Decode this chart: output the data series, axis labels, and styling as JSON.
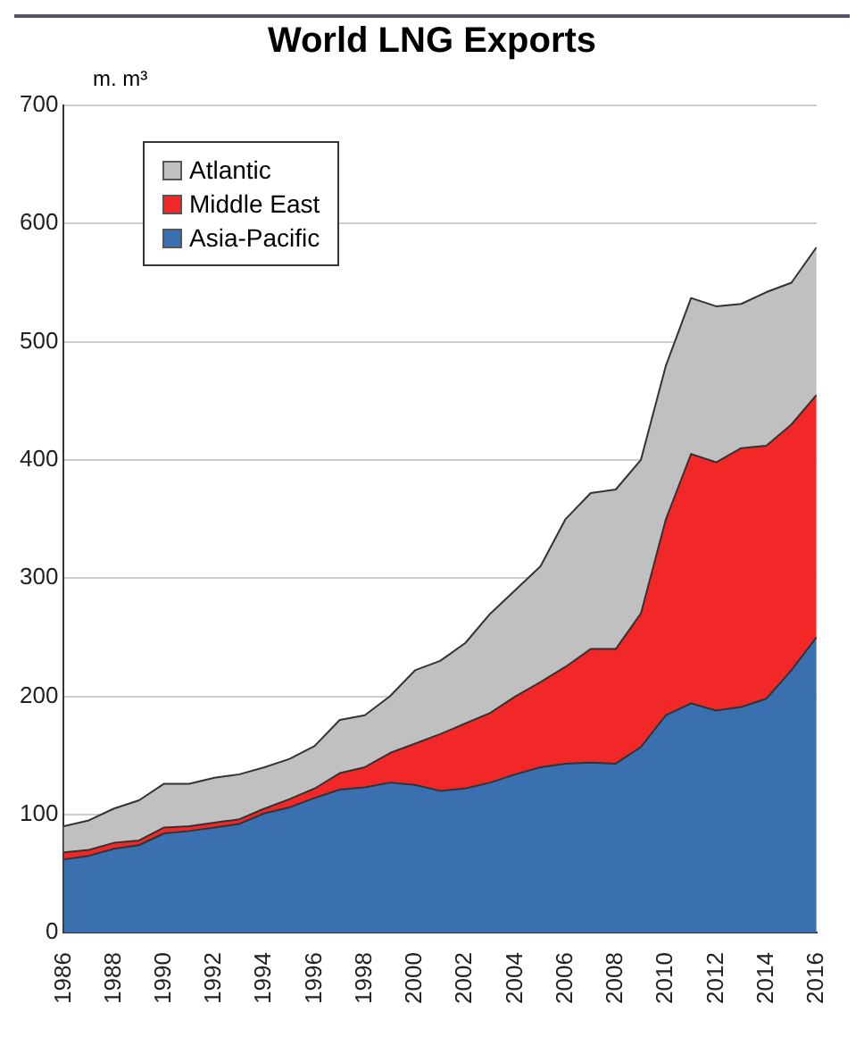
{
  "chart_data": {
    "type": "area",
    "title": "World LNG Exports",
    "ylabel": "m. m³",
    "stacked": true,
    "x": [
      1986,
      1987,
      1988,
      1989,
      1990,
      1991,
      1992,
      1993,
      1994,
      1995,
      1996,
      1997,
      1998,
      1999,
      2000,
      2001,
      2002,
      2003,
      2004,
      2005,
      2006,
      2007,
      2008,
      2009,
      2010,
      2011,
      2012,
      2013,
      2014,
      2015,
      2016
    ],
    "series": [
      {
        "name": "Asia-Pacific",
        "color": "#3a6fb0",
        "values": [
          62,
          65,
          71,
          74,
          84,
          86,
          89,
          92,
          101,
          106,
          114,
          121,
          123,
          127,
          125,
          120,
          122,
          127,
          134,
          140,
          143,
          144,
          143,
          157,
          184,
          194,
          188,
          191,
          198,
          222,
          250
        ]
      },
      {
        "name": "Middle East",
        "color": "#f22828",
        "values": [
          6,
          5,
          5,
          4,
          5,
          4,
          4,
          4,
          4,
          7,
          8,
          14,
          17,
          25,
          35,
          48,
          55,
          59,
          66,
          72,
          82,
          96,
          97,
          113,
          166,
          211,
          210,
          219,
          214,
          208,
          205
        ]
      },
      {
        "name": "Atlantic",
        "color": "#c0c0c0",
        "values": [
          22,
          25,
          29,
          34,
          37,
          36,
          38,
          38,
          35,
          34,
          36,
          45,
          44,
          48,
          62,
          62,
          68,
          84,
          90,
          98,
          125,
          132,
          135,
          130,
          130,
          132,
          132,
          122,
          130,
          120,
          125
        ]
      }
    ],
    "xlim": [
      1986,
      2016
    ],
    "xticks": [
      1986,
      1988,
      1990,
      1992,
      1994,
      1996,
      1998,
      2000,
      2002,
      2004,
      2006,
      2008,
      2010,
      2012,
      2014,
      2016
    ],
    "ylim": [
      0,
      700
    ],
    "yticks": [
      0,
      100,
      200,
      300,
      400,
      500,
      600,
      700
    ],
    "grid": "y",
    "legend": "top left"
  }
}
